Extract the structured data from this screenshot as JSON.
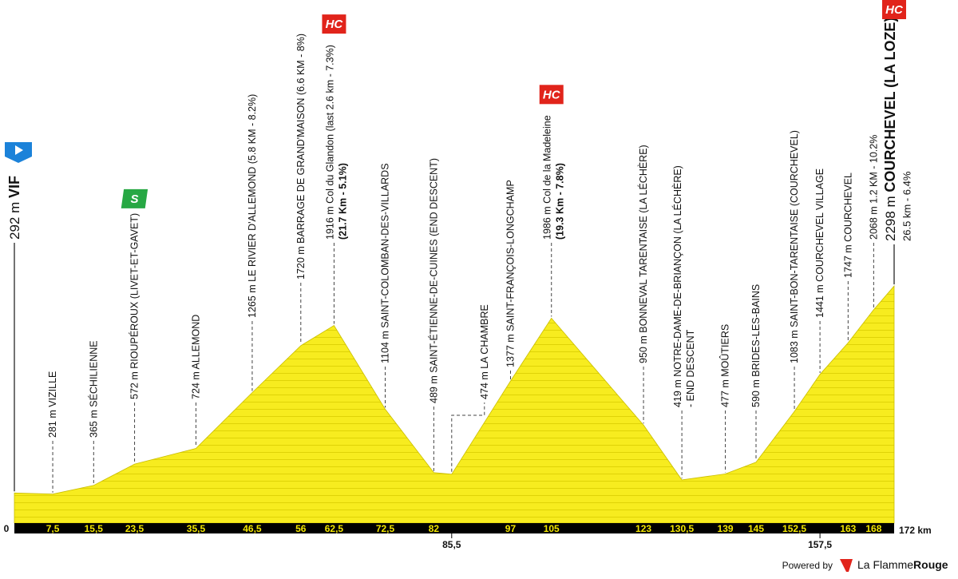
{
  "chart_data": {
    "type": "profile",
    "x": [
      0,
      7.5,
      15.5,
      23.5,
      35.5,
      46.5,
      56,
      62.5,
      72.5,
      82,
      85.5,
      97,
      105,
      123,
      130.5,
      139,
      145,
      152.5,
      157.5,
      163,
      168,
      172
    ],
    "values": [
      292,
      281,
      365,
      572,
      724,
      1265,
      1720,
      1916,
      1104,
      489,
      474,
      1377,
      1986,
      950,
      419,
      477,
      590,
      1083,
      1441,
      1747,
      2068,
      2298
    ],
    "value_labels": [
      "292 m",
      "281 m",
      "365 m",
      "572 m",
      "724 m",
      "1265 m",
      "1720 m",
      "1916 m",
      "1104 m",
      "489 m",
      "474 m",
      "1377 m",
      "1986 m",
      "950 m",
      "419 m",
      "477 m",
      "590 m",
      "1083 m",
      "1441 m",
      "1747 m",
      "2068 m",
      "2298 m"
    ],
    "names": [
      "VIF",
      "VIZILLE",
      "SÉCHILIENNE",
      "RIOUPÉROUX (LIVET-ET-GAVET)",
      "ALLEMOND",
      "LE RIVIER D'ALLEMOND (5.8 KM - 8.2%)",
      "BARRAGE DE GRAND'MAISON (6.6 KM - 8%)",
      "Col du Glandon (last 2.6 km - 7.3%)",
      "SAINT-COLOMBAN-DES-VILLARDS",
      "SAINT-ÉTIENNE-DE-CUINES (END DESCENT)",
      "LA CHAMBRE",
      "SAINT-FRANÇOIS-LONGCHAMP",
      "Col de la Madeleine",
      "BONNEVAL TARENTAISE (LA LÉCHÈRE)",
      "NOTRE-DAME-DE-BRIANÇON (LA LÉCHÈRE)",
      "MOÛTIERS",
      "BRIDES-LES-BAINS",
      "SAINT-BON-TARENTAISE (COURCHEVEL)",
      "COURCHEVEL VILLAGE",
      "COURCHEVEL",
      "1.2 KM - 10.2%",
      "COURCHEVEL (LA LOZE)"
    ],
    "details": [
      null,
      null,
      null,
      null,
      null,
      null,
      null,
      "(21.7 Km - 5.1%)",
      null,
      null,
      null,
      null,
      "(19.3 Km - 7.8%)",
      null,
      "- END DESCENT",
      null,
      null,
      null,
      null,
      null,
      null,
      "26.5 km - 6.4%"
    ],
    "badges": [
      null,
      null,
      null,
      "S",
      null,
      null,
      null,
      "HC",
      null,
      null,
      null,
      null,
      "HC",
      null,
      null,
      null,
      null,
      null,
      null,
      null,
      null,
      "HC"
    ],
    "xlim": [
      0,
      172
    ],
    "xticks": [
      0,
      {
        "value": 7.5,
        "label": "7,5"
      },
      {
        "value": 15.5,
        "label": "15,5"
      },
      {
        "value": 23.5,
        "label": "23,5"
      },
      {
        "value": 35.5,
        "label": "35,5"
      },
      {
        "value": 46.5,
        "label": "46,5"
      },
      56,
      {
        "value": 62.5,
        "label": "62,5"
      },
      {
        "value": 72.5,
        "label": "72,5"
      },
      82,
      {
        "value": 85.5,
        "label": "85,5"
      },
      97,
      105,
      123,
      {
        "value": 130.5,
        "label": "130,5"
      },
      139,
      145,
      {
        "value": 152.5,
        "label": "152,5"
      },
      {
        "value": 157.5,
        "label": "157,5"
      },
      163,
      168,
      {
        "value": 172,
        "label": "172 km"
      }
    ],
    "color": "#f7ec1f"
  },
  "footer": {
    "powered_by": "Powered by",
    "brand": "La Flamme",
    "brand_bold": "Rouge"
  }
}
